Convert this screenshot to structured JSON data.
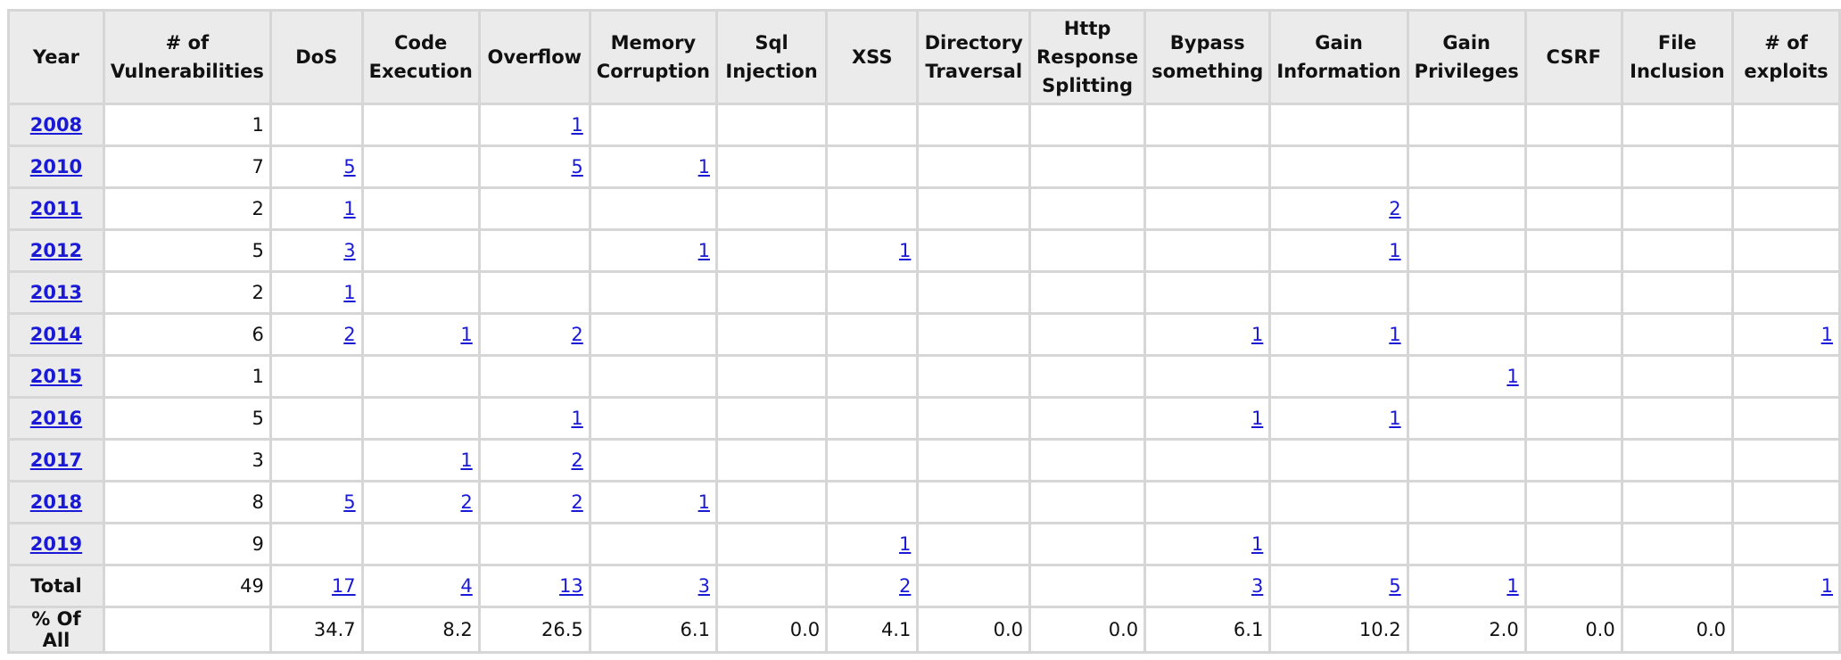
{
  "columns": [
    "Year",
    "# of Vulnerabilities",
    "DoS",
    "Code Execution",
    "Overflow",
    "Memory Corruption",
    "Sql Injection",
    "XSS",
    "Directory Traversal",
    "Http Response Splitting",
    "Bypass something",
    "Gain Information",
    "Gain Privileges",
    "CSRF",
    "File Inclusion",
    "# of exploits"
  ],
  "rows": [
    {
      "year": "2008",
      "cells": [
        "1",
        "",
        "",
        "1",
        "",
        "",
        "",
        "",
        "",
        "",
        "",
        "",
        "",
        "",
        ""
      ]
    },
    {
      "year": "2010",
      "cells": [
        "7",
        "5",
        "",
        "5",
        "1",
        "",
        "",
        "",
        "",
        "",
        "",
        "",
        "",
        "",
        ""
      ]
    },
    {
      "year": "2011",
      "cells": [
        "2",
        "1",
        "",
        "",
        "",
        "",
        "",
        "",
        "",
        "",
        "2",
        "",
        "",
        "",
        ""
      ]
    },
    {
      "year": "2012",
      "cells": [
        "5",
        "3",
        "",
        "",
        "1",
        "",
        "1",
        "",
        "",
        "",
        "1",
        "",
        "",
        "",
        ""
      ]
    },
    {
      "year": "2013",
      "cells": [
        "2",
        "1",
        "",
        "",
        "",
        "",
        "",
        "",
        "",
        "",
        "",
        "",
        "",
        "",
        ""
      ]
    },
    {
      "year": "2014",
      "cells": [
        "6",
        "2",
        "1",
        "2",
        "",
        "",
        "",
        "",
        "",
        "1",
        "1",
        "",
        "",
        "",
        "1"
      ]
    },
    {
      "year": "2015",
      "cells": [
        "1",
        "",
        "",
        "",
        "",
        "",
        "",
        "",
        "",
        "",
        "",
        "1",
        "",
        "",
        ""
      ]
    },
    {
      "year": "2016",
      "cells": [
        "5",
        "",
        "",
        "1",
        "",
        "",
        "",
        "",
        "",
        "1",
        "1",
        "",
        "",
        "",
        ""
      ]
    },
    {
      "year": "2017",
      "cells": [
        "3",
        "",
        "1",
        "2",
        "",
        "",
        "",
        "",
        "",
        "",
        "",
        "",
        "",
        "",
        ""
      ]
    },
    {
      "year": "2018",
      "cells": [
        "8",
        "5",
        "2",
        "2",
        "1",
        "",
        "",
        "",
        "",
        "",
        "",
        "",
        "",
        "",
        ""
      ]
    },
    {
      "year": "2019",
      "cells": [
        "9",
        "",
        "",
        "",
        "",
        "",
        "1",
        "",
        "",
        "1",
        "",
        "",
        "",
        "",
        ""
      ]
    }
  ],
  "total": {
    "label": "Total",
    "cells": [
      "49",
      "17",
      "4",
      "13",
      "3",
      "",
      "2",
      "",
      "",
      "3",
      "5",
      "1",
      "",
      "",
      "1"
    ]
  },
  "percent": {
    "label": "% Of All",
    "cells": [
      "",
      "34.7",
      "8.2",
      "26.5",
      "6.1",
      "0.0",
      "4.1",
      "0.0",
      "0.0",
      "6.1",
      "10.2",
      "2.0",
      "0.0",
      "0.0",
      ""
    ]
  }
}
